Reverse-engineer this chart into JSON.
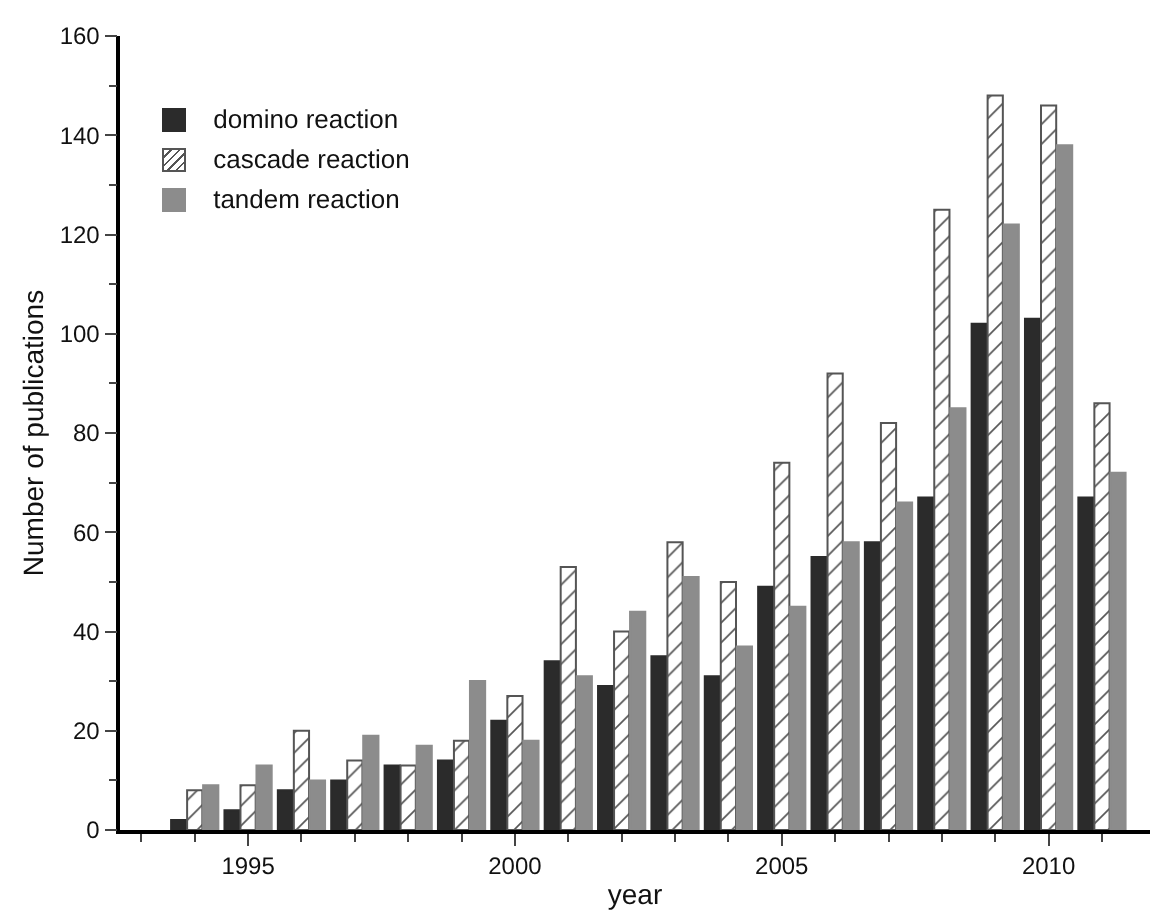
{
  "chart_data": {
    "type": "bar",
    "xlabel": "year",
    "ylabel": "Number of publications",
    "x": [
      1994,
      1995,
      1996,
      1997,
      1998,
      1999,
      2000,
      2001,
      2002,
      2003,
      2004,
      2005,
      2006,
      2007,
      2008,
      2009,
      2010,
      2011
    ],
    "series": [
      {
        "name": "domino reaction",
        "color": "#2b2b2b",
        "values": [
          2,
          4,
          8,
          10,
          13,
          14,
          22,
          34,
          29,
          35,
          31,
          49,
          55,
          58,
          67,
          102,
          103,
          67
        ]
      },
      {
        "name": "cascade reaction",
        "color": "#555555",
        "values": [
          8,
          9,
          20,
          14,
          13,
          18,
          27,
          53,
          40,
          58,
          50,
          74,
          92,
          82,
          125,
          148,
          146,
          86
        ]
      },
      {
        "name": "tandem reaction",
        "color": "#8c8c8c",
        "values": [
          9,
          13,
          10,
          19,
          17,
          30,
          18,
          31,
          44,
          51,
          37,
          45,
          58,
          66,
          85,
          122,
          138,
          72
        ]
      }
    ],
    "xlim": [
      1992.6,
      2011.9
    ],
    "xticks": [
      1995,
      2000,
      2005,
      2010
    ],
    "ylim": [
      0,
      160
    ],
    "yticks": [
      0,
      20,
      40,
      60,
      80,
      100,
      120,
      140,
      160
    ],
    "grid": false,
    "legend": "top left"
  }
}
